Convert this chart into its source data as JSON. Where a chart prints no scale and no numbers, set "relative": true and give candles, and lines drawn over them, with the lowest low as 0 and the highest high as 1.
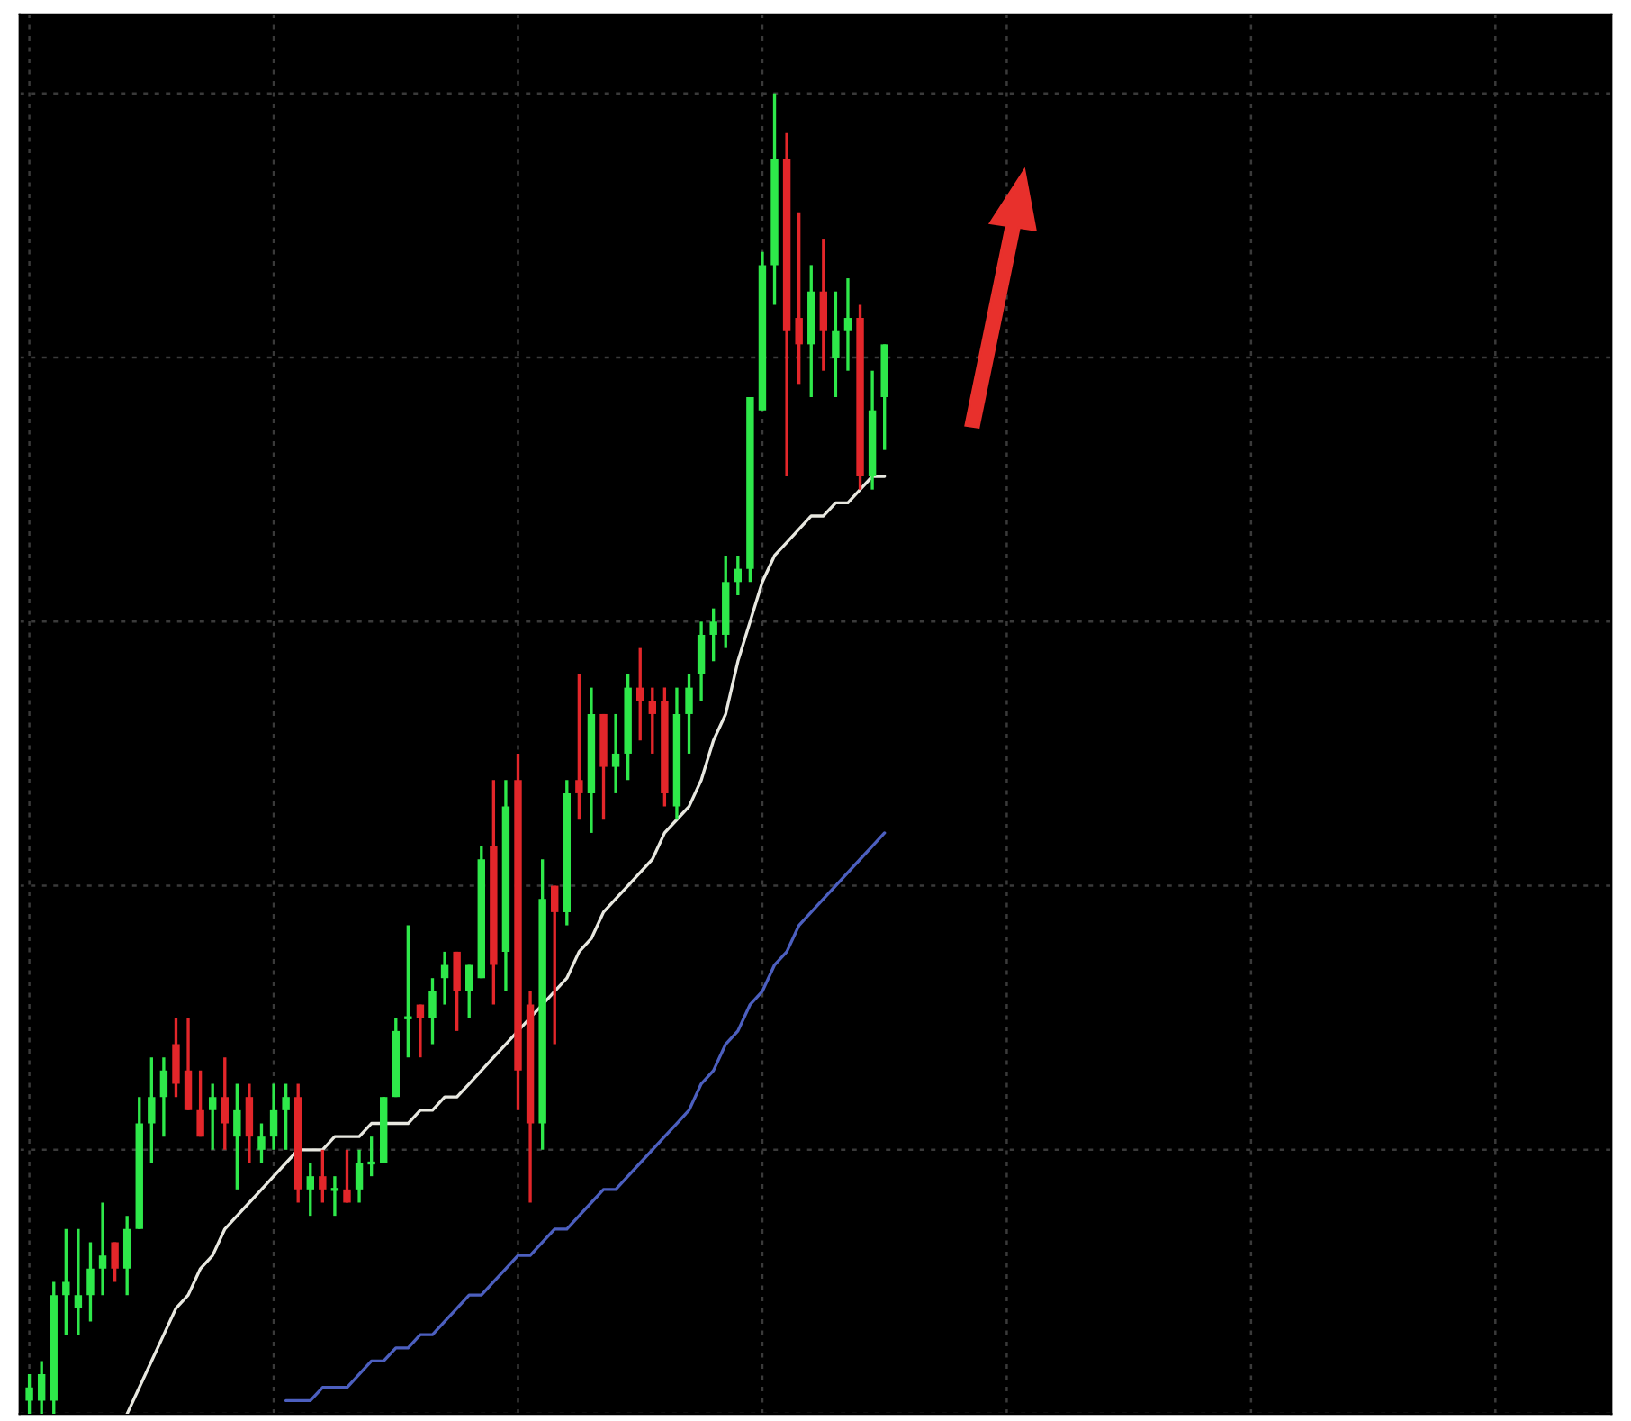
{
  "chart_data": {
    "type": "candlestick",
    "relative": true,
    "grid": true,
    "categories": [
      null,
      null,
      null,
      null,
      null,
      null,
      null,
      null,
      null,
      null,
      null,
      null,
      null,
      null,
      null,
      null,
      null,
      null,
      null,
      null,
      null,
      null,
      null,
      null,
      null,
      null,
      null,
      null,
      null,
      null,
      null,
      null,
      null,
      null,
      null,
      null,
      null,
      null,
      null,
      null,
      null,
      null,
      null,
      null,
      null,
      null,
      null,
      null,
      null,
      null,
      null,
      null,
      null,
      null,
      null,
      null,
      null,
      null,
      null,
      null,
      null,
      null,
      null,
      null,
      null,
      null,
      null,
      null,
      null,
      null,
      null
    ],
    "ohlc": [
      [
        0.01,
        0.03,
        0,
        0.02
      ],
      [
        0.01,
        0.04,
        0,
        0.03
      ],
      [
        0.01,
        0.1,
        0.0,
        0.09
      ],
      [
        0.09,
        0.14,
        0.06,
        0.1
      ],
      [
        0.08,
        0.14,
        0.06,
        0.09
      ],
      [
        0.09,
        0.13,
        0.07,
        0.11
      ],
      [
        0.11,
        0.16,
        0.09,
        0.12
      ],
      [
        0.13,
        0.13,
        0.1,
        0.11
      ],
      [
        0.11,
        0.15,
        0.09,
        0.14
      ],
      [
        0.14,
        0.24,
        0.14,
        0.22
      ],
      [
        0.22,
        0.27,
        0.19,
        0.24
      ],
      [
        0.24,
        0.27,
        0.21,
        0.26
      ],
      [
        0.28,
        0.3,
        0.24,
        0.25
      ],
      [
        0.26,
        0.3,
        0.23,
        0.23
      ],
      [
        0.23,
        0.26,
        0.21,
        0.21
      ],
      [
        0.23,
        0.25,
        0.2,
        0.24
      ],
      [
        0.24,
        0.27,
        0.2,
        0.22
      ],
      [
        0.21,
        0.25,
        0.17,
        0.23
      ],
      [
        0.24,
        0.25,
        0.19,
        0.21
      ],
      [
        0.2,
        0.22,
        0.19,
        0.21
      ],
      [
        0.21,
        0.25,
        0.2,
        0.23
      ],
      [
        0.23,
        0.25,
        0.2,
        0.24
      ],
      [
        0.24,
        0.25,
        0.16,
        0.17
      ],
      [
        0.17,
        0.19,
        0.15,
        0.18
      ],
      [
        0.18,
        0.2,
        0.16,
        0.17
      ],
      [
        0.17,
        0.18,
        0.15,
        0.17
      ],
      [
        0.17,
        0.2,
        0.16,
        0.16
      ],
      [
        0.17,
        0.2,
        0.16,
        0.19
      ],
      [
        0.19,
        0.21,
        0.18,
        0.19
      ],
      [
        0.19,
        0.24,
        0.19,
        0.24
      ],
      [
        0.24,
        0.3,
        0.24,
        0.29
      ],
      [
        0.3,
        0.37,
        0.27,
        0.3
      ],
      [
        0.31,
        0.31,
        0.27,
        0.3
      ],
      [
        0.3,
        0.33,
        0.28,
        0.32
      ],
      [
        0.33,
        0.35,
        0.31,
        0.34
      ],
      [
        0.35,
        0.35,
        0.29,
        0.32
      ],
      [
        0.32,
        0.34,
        0.3,
        0.34
      ],
      [
        0.33,
        0.43,
        0.33,
        0.42
      ],
      [
        0.43,
        0.48,
        0.31,
        0.34
      ],
      [
        0.35,
        0.48,
        0.32,
        0.46
      ],
      [
        0.48,
        0.5,
        0.23,
        0.26
      ],
      [
        0.31,
        0.32,
        0.16,
        0.22
      ],
      [
        0.22,
        0.42,
        0.2,
        0.39
      ],
      [
        0.4,
        0.4,
        0.28,
        0.38
      ],
      [
        0.38,
        0.48,
        0.37,
        0.47
      ],
      [
        0.48,
        0.56,
        0.45,
        0.47
      ],
      [
        0.47,
        0.55,
        0.44,
        0.53
      ],
      [
        0.53,
        0.53,
        0.45,
        0.49
      ],
      [
        0.49,
        0.53,
        0.47,
        0.5
      ],
      [
        0.5,
        0.56,
        0.48,
        0.55
      ],
      [
        0.55,
        0.58,
        0.51,
        0.54
      ],
      [
        0.54,
        0.55,
        0.5,
        0.53
      ],
      [
        0.54,
        0.55,
        0.46,
        0.47
      ],
      [
        0.46,
        0.55,
        0.45,
        0.53
      ],
      [
        0.53,
        0.56,
        0.5,
        0.55
      ],
      [
        0.56,
        0.6,
        0.54,
        0.59
      ],
      [
        0.59,
        0.61,
        0.57,
        0.6
      ],
      [
        0.59,
        0.65,
        0.58,
        0.63
      ],
      [
        0.63,
        0.65,
        0.62,
        0.64
      ],
      [
        0.64,
        0.77,
        0.63,
        0.77
      ],
      [
        0.76,
        0.88,
        0.76,
        0.87
      ],
      [
        0.87,
        1.0,
        0.84,
        0.95
      ],
      [
        0.95,
        0.97,
        0.71,
        0.82
      ],
      [
        0.83,
        0.91,
        0.78,
        0.81
      ],
      [
        0.81,
        0.87,
        0.77,
        0.85
      ],
      [
        0.85,
        0.89,
        0.79,
        0.82
      ],
      [
        0.8,
        0.85,
        0.77,
        0.82
      ],
      [
        0.82,
        0.86,
        0.79,
        0.83
      ],
      [
        0.83,
        0.84,
        0.7,
        0.71
      ],
      [
        0.71,
        0.79,
        0.7,
        0.76
      ],
      [
        0.77,
        0.81,
        0.73,
        0.81
      ]
    ],
    "colors": [
      "#2ee84a",
      "#2ee84a",
      "#2ee84a",
      "#2ee84a",
      "#2ee84a",
      "#2ee84a",
      "#2ee84a",
      "#e3262a",
      "#2ee84a",
      "#2ee84a",
      "#2ee84a",
      "#2ee84a",
      "#e3262a",
      "#e3262a",
      "#e3262a",
      "#2ee84a",
      "#e3262a",
      "#2ee84a",
      "#e3262a",
      "#2ee84a",
      "#2ee84a",
      "#2ee84a",
      "#e3262a",
      "#2ee84a",
      "#e3262a",
      "#2ee84a",
      "#e3262a",
      "#2ee84a",
      "#2ee84a",
      "#2ee84a",
      "#2ee84a",
      "#2ee84a",
      "#e3262a",
      "#2ee84a",
      "#2ee84a",
      "#e3262a",
      "#2ee84a",
      "#2ee84a",
      "#e3262a",
      "#2ee84a",
      "#e3262a",
      "#e3262a",
      "#2ee84a",
      "#e3262a",
      "#2ee84a",
      "#e3262a",
      "#2ee84a",
      "#e3262a",
      "#2ee84a",
      "#2ee84a",
      "#e3262a",
      "#e3262a",
      "#e3262a",
      "#2ee84a",
      "#2ee84a",
      "#2ee84a",
      "#2ee84a",
      "#2ee84a",
      "#2ee84a",
      "#2ee84a",
      "#2ee84a",
      "#2ee84a",
      "#e3262a",
      "#e3262a",
      "#2ee84a",
      "#e3262a",
      "#2ee84a",
      "#2ee84a",
      "#e3262a",
      "#2ee84a",
      "#2ee84a"
    ],
    "series": [
      {
        "type": "line",
        "color": "#e8e8e0",
        "values": [
          null,
          null,
          null,
          null,
          null,
          null,
          null,
          null,
          0.0,
          0.02,
          0.04,
          0.06,
          0.08,
          0.09,
          0.11,
          0.12,
          0.14,
          0.15,
          0.16,
          0.17,
          0.18,
          0.19,
          0.2,
          0.2,
          0.2,
          0.21,
          0.21,
          0.21,
          0.22,
          0.22,
          0.22,
          0.22,
          0.23,
          0.23,
          0.24,
          0.24,
          0.25,
          0.26,
          0.27,
          0.28,
          0.29,
          0.3,
          0.31,
          0.32,
          0.33,
          0.35,
          0.36,
          0.38,
          0.39,
          0.4,
          0.41,
          0.42,
          0.44,
          0.45,
          0.46,
          0.48,
          0.51,
          0.53,
          0.57,
          0.6,
          0.63,
          0.65,
          0.66,
          0.67,
          0.68,
          0.68,
          0.69,
          0.69,
          0.7,
          0.71,
          0.71
        ]
      },
      {
        "type": "line",
        "color": "#4c5fbf",
        "values": [
          null,
          null,
          null,
          null,
          null,
          null,
          null,
          null,
          null,
          null,
          null,
          null,
          null,
          null,
          null,
          null,
          null,
          null,
          null,
          null,
          null,
          0.01,
          0.01,
          0.01,
          0.02,
          0.02,
          0.02,
          0.03,
          0.04,
          0.04,
          0.05,
          0.05,
          0.06,
          0.06,
          0.07,
          0.08,
          0.09,
          0.09,
          0.1,
          0.11,
          0.12,
          0.12,
          0.13,
          0.14,
          0.14,
          0.15,
          0.16,
          0.17,
          0.17,
          0.18,
          0.19,
          0.2,
          0.21,
          0.22,
          0.23,
          0.25,
          0.26,
          0.28,
          0.29,
          0.31,
          0.32,
          0.34,
          0.35,
          0.37,
          0.38,
          0.39,
          0.4,
          0.41,
          0.42,
          0.43,
          0.44
        ]
      }
    ]
  }
}
